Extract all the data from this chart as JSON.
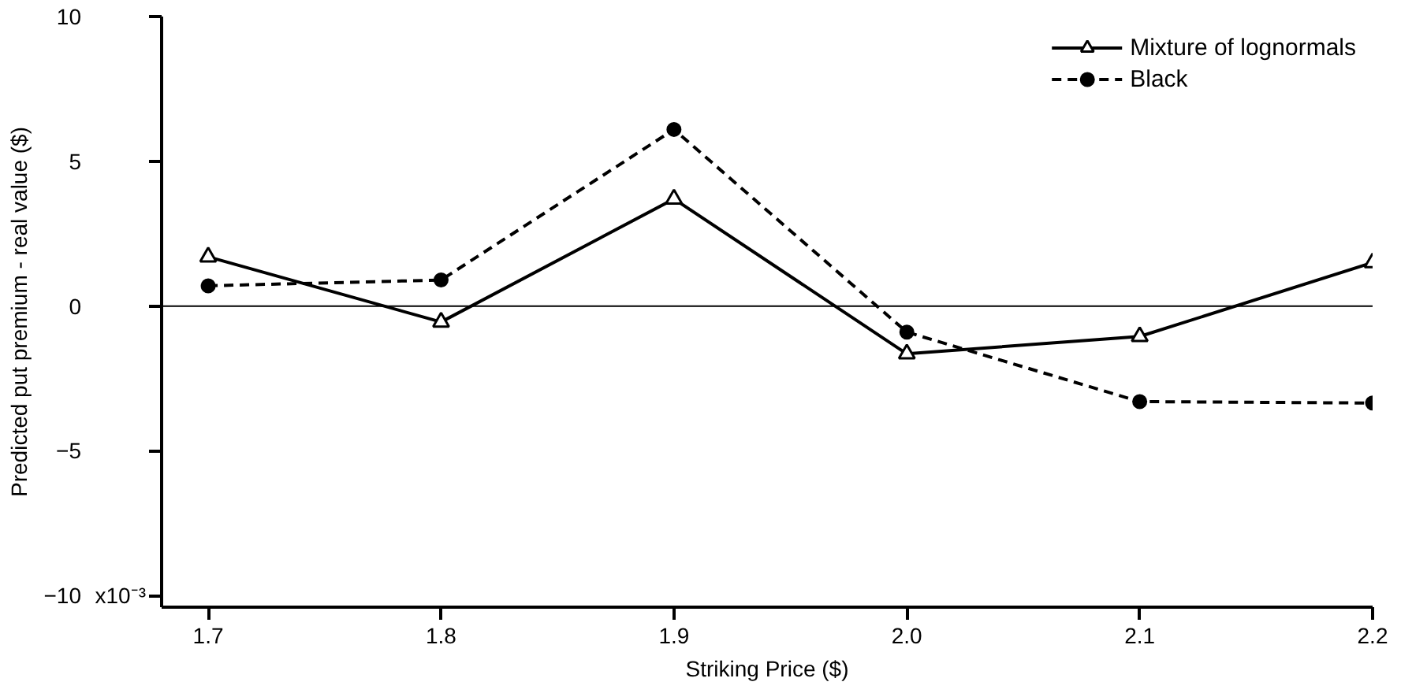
{
  "chart_data": {
    "type": "line",
    "xlabel": "Striking Price ($)",
    "ylabel": "Predicted put premium - real value ($)",
    "x": [
      1.7,
      1.8,
      1.9,
      2.0,
      2.1,
      2.2
    ],
    "series": [
      {
        "name": "Mixture of lognormals",
        "color": "#000000",
        "marker": "triangle",
        "line_style": "solid",
        "values": [
          1.7,
          -0.55,
          3.7,
          -1.65,
          -1.05,
          1.5
        ]
      },
      {
        "name": "Black",
        "color": "#000000",
        "marker": "circle",
        "line_style": "dashed",
        "values": [
          0.7,
          0.9,
          6.1,
          -0.9,
          -3.3,
          -3.35
        ]
      }
    ],
    "xlim": [
      1.68,
      2.2
    ],
    "ylim": [
      -10.4,
      10
    ],
    "xticks": [
      {
        "value": 1.7,
        "label": "1.7"
      },
      {
        "value": 1.8,
        "label": "1.8"
      },
      {
        "value": 1.9,
        "label": "1.9"
      },
      {
        "value": 2.0,
        "label": "2.0"
      },
      {
        "value": 2.1,
        "label": "2.1"
      },
      {
        "value": 2.2,
        "label": "2.2"
      }
    ],
    "yticks": [
      -10,
      -5,
      0,
      5,
      10
    ],
    "annotations": [
      "x10⁻³"
    ],
    "ref_lines": [
      {
        "axis": "y",
        "value": 0,
        "label": null,
        "color": "#000000"
      }
    ],
    "grid": false,
    "legend": "top right"
  }
}
